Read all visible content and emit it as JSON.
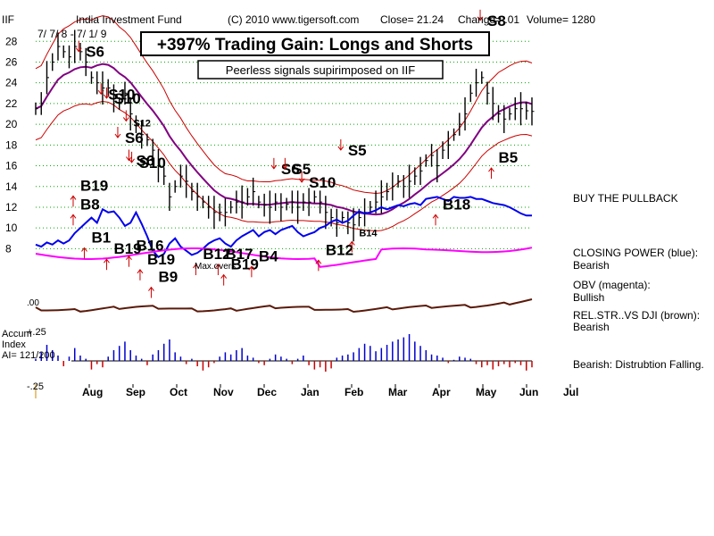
{
  "header": {
    "ticker": "IIF",
    "fund": "India Investment Fund",
    "copyright": "(C) 2010 www.tigersoft.com",
    "close": "Close=  21.24",
    "change": "Change= .01",
    "volume": "Volume= 1280"
  },
  "banner": {
    "title": "+397% Trading Gain: Longs and Shorts"
  },
  "subtitle": "Peerless signals supirimposed on IIF",
  "date_note": "7/ 7/ 8 - 7/ 1/ 9",
  "sidebar": {
    "buy_pullback": "BUY THE PULLBACK",
    "cp_label": "CLOSING POWER (blue):",
    "cp_value": "Bearish",
    "obv_label": "OBV (magenta):",
    "obv_value": "Bullish",
    "rel_label": "REL.STR..VS DJI (brown):",
    "rel_value": "Bearish",
    "accum_note": "Bearish: Distrubtion Falling."
  },
  "accum": {
    "title_line1": "Accum",
    "title_line2": "Index",
    "ai": "AI= 121/200",
    "top": "+.25",
    "bottom": "-.25",
    "zero": ".00"
  },
  "annotation_maxovers": "Max.overs",
  "colors": {
    "price": "#000000",
    "bands": "#cc0000",
    "ma": "#800080",
    "closing_power": "#0000ee",
    "obv": "#ff00ff",
    "rel_strength": "#5a1a0a",
    "accum_pos": "#0000cc",
    "accum_neg": "#cc0000",
    "grid": "#00aa00"
  },
  "chart_data": {
    "type": "line",
    "title": "India Investment Fund",
    "yticks": [
      "28",
      "26",
      "24",
      "22",
      "20",
      "18",
      "16",
      "14",
      "12",
      "10",
      "8"
    ],
    "ylim": [
      7,
      29.4
    ],
    "months": [
      "Aug",
      "Sep",
      "Oct",
      "Nov",
      "Dec",
      "Jan",
      "Feb",
      "Mar",
      "Apr",
      "May",
      "Jun",
      "Jul"
    ],
    "x": [
      0,
      4,
      8,
      12,
      16,
      20,
      24,
      28,
      32,
      36,
      40,
      44,
      48,
      52,
      56,
      60,
      64,
      68,
      72,
      76,
      80,
      84,
      88,
      92,
      96,
      100,
      104,
      108,
      112,
      116,
      120,
      124,
      128,
      132,
      136,
      140,
      144,
      148,
      152,
      156,
      160,
      164,
      168,
      172,
      176,
      180,
      184,
      188,
      192,
      196,
      200,
      204,
      208,
      212,
      216,
      220,
      224,
      228,
      232,
      236,
      240,
      244,
      248,
      252,
      256,
      260,
      264,
      268,
      272,
      276,
      280,
      284,
      288,
      292,
      296,
      300,
      304,
      308,
      312,
      316,
      320,
      324,
      328,
      332,
      336,
      340,
      344,
      348,
      352,
      356
    ],
    "series": [
      {
        "values": [
          21.5,
          22,
          24.5,
          26,
          27.5,
          27,
          26.5,
          27.5,
          27,
          26,
          24.5,
          24,
          23.5,
          23.5,
          22.5,
          22,
          23,
          21,
          20,
          19,
          18.5,
          17.5,
          16,
          15,
          13,
          14,
          15,
          14.5,
          13.5,
          13,
          12.5,
          12,
          11.5,
          11.5,
          11.5,
          12,
          12.5,
          12.5,
          13,
          13.5,
          12.5,
          12.2,
          12,
          12.5,
          12,
          12.3,
          12.5,
          12,
          12.5,
          12.5,
          13,
          12.5,
          11.5,
          11,
          10.5,
          11,
          10.5,
          10.3,
          11,
          11.5,
          12,
          12.5,
          13,
          13.5,
          14,
          14.5,
          14,
          14.5,
          15,
          15.5,
          16.5,
          17,
          16,
          17.5,
          18,
          19,
          20,
          21,
          23,
          24,
          24.5,
          23,
          22,
          21,
          20.5,
          21,
          21.5,
          21.5,
          21.3,
          21.24
        ]
      },
      {
        "name": "CLOSING POWER",
        "values": [
          8.4,
          8.2,
          8.6,
          8.4,
          8.8,
          8.5,
          8.8,
          9.5,
          10,
          10.5,
          11,
          10.5,
          11.8,
          11.5,
          11.6,
          11,
          10.2,
          10.5,
          11.5,
          10.4,
          9.2,
          7.8,
          7.2,
          7.5,
          8.5,
          9,
          8.2,
          7.8,
          7.4,
          7.6,
          8,
          8.5,
          8.8,
          9,
          8.5,
          8.2,
          8.8,
          9.2,
          9.5,
          9.8,
          9.2,
          9.6,
          9.8,
          9.4,
          9.8,
          10,
          10.2,
          9.6,
          9.2,
          9.4,
          9.6,
          10,
          10.2,
          10.6,
          10.8,
          10.5,
          10.7,
          11.2,
          11.6,
          11.4,
          11.5,
          11.7,
          12,
          11.8,
          12,
          12.2,
          12.1,
          12.3,
          12.4,
          12.2,
          12.8,
          12.9,
          13,
          12.8,
          12.6,
          13,
          12.9,
          12.9,
          13,
          12.8,
          12.8,
          12.6,
          12.4,
          12.3,
          12.2,
          12,
          11.7,
          11.4,
          11.2,
          11.2
        ]
      }
    ],
    "accum_values": [
      0.02,
      0.08,
      0.15,
      0.1,
      0.05,
      -0.05,
      0.04,
      0.12,
      0.05,
      0.02,
      -0.08,
      -0.03,
      -0.06,
      0.04,
      0.1,
      0.14,
      0.18,
      0.1,
      0.05,
      0.02,
      -0.04,
      0.06,
      0.1,
      0.16,
      0.2,
      0.08,
      0.04,
      -0.03,
      0.02,
      -0.05,
      -0.09,
      -0.06,
      -0.02,
      0.04,
      0.08,
      0.06,
      0.1,
      0.12,
      0.05,
      0.03,
      -0.02,
      -0.04,
      0.02,
      0.06,
      0.04,
      0.02,
      -0.03,
      0.02,
      0.05,
      -0.04,
      -0.08,
      -0.06,
      -0.1,
      -0.07,
      0.03,
      0.05,
      0.06,
      0.08,
      0.12,
      0.16,
      0.14,
      0.09,
      0.12,
      0.15,
      0.18,
      0.2,
      0.22,
      0.25,
      0.18,
      0.14,
      0.1,
      0.06,
      0.05,
      0.03,
      -0.02,
      0.01,
      0.04,
      0.03,
      0.02,
      -0.03,
      -0.06,
      -0.04,
      -0.08,
      -0.05,
      -0.03,
      -0.06,
      -0.02,
      -0.04,
      -0.09,
      -0.06
    ],
    "signals": [
      {
        "label": "S6",
        "x": 36,
        "y": 26.5,
        "type": "sell"
      },
      {
        "label": "S10",
        "x": 52,
        "y": 22.4,
        "type": "sell"
      },
      {
        "label": "S10",
        "x": 56,
        "y": 22,
        "type": "sell"
      },
      {
        "label": "S6",
        "x": 64,
        "y": 18.2,
        "type": "sell"
      },
      {
        "label": "S12",
        "x": 70,
        "y": 19.8,
        "type": "sell"
      },
      {
        "label": "S6",
        "x": 72,
        "y": 16,
        "type": "sell"
      },
      {
        "label": "S10",
        "x": 74,
        "y": 15.8,
        "type": "sell"
      },
      {
        "label": "S6",
        "x": 176,
        "y": 15.2,
        "type": "sell"
      },
      {
        "label": "S5",
        "x": 184,
        "y": 15.2,
        "type": "sell"
      },
      {
        "label": "S10",
        "x": 196,
        "y": 13.9,
        "type": "sell"
      },
      {
        "label": "S5",
        "x": 224,
        "y": 17,
        "type": "sell"
      },
      {
        "label": "S8",
        "x": 324,
        "y": 29.5,
        "type": "sell"
      },
      {
        "label": "B19",
        "x": 32,
        "y": 13.6,
        "type": "buy"
      },
      {
        "label": "B8",
        "x": 32,
        "y": 11.8,
        "type": "buy"
      },
      {
        "label": "B1",
        "x": 40,
        "y": 8.6,
        "type": "buy"
      },
      {
        "label": "B19",
        "x": 56,
        "y": 7.5,
        "type": "buy"
      },
      {
        "label": "B16",
        "x": 72,
        "y": 7.8,
        "type": "buy"
      },
      {
        "label": "B19",
        "x": 80,
        "y": 6.5,
        "type": "buy"
      },
      {
        "label": "B9",
        "x": 88,
        "y": 4.8,
        "type": "buy"
      },
      {
        "label": "B12",
        "x": 120,
        "y": 7,
        "type": "buy"
      },
      {
        "label": "B17",
        "x": 136,
        "y": 7,
        "type": "buy"
      },
      {
        "label": "B19",
        "x": 140,
        "y": 6,
        "type": "buy"
      },
      {
        "label": "B4",
        "x": 160,
        "y": 6.8,
        "type": "buy"
      },
      {
        "label": "B12",
        "x": 208,
        "y": 7.4,
        "type": "buy"
      },
      {
        "label": "B14",
        "x": 232,
        "y": 9.2,
        "type": "buy"
      },
      {
        "label": "B18",
        "x": 292,
        "y": 11.8,
        "type": "buy"
      },
      {
        "label": "B5",
        "x": 332,
        "y": 16.3,
        "type": "buy"
      }
    ]
  }
}
